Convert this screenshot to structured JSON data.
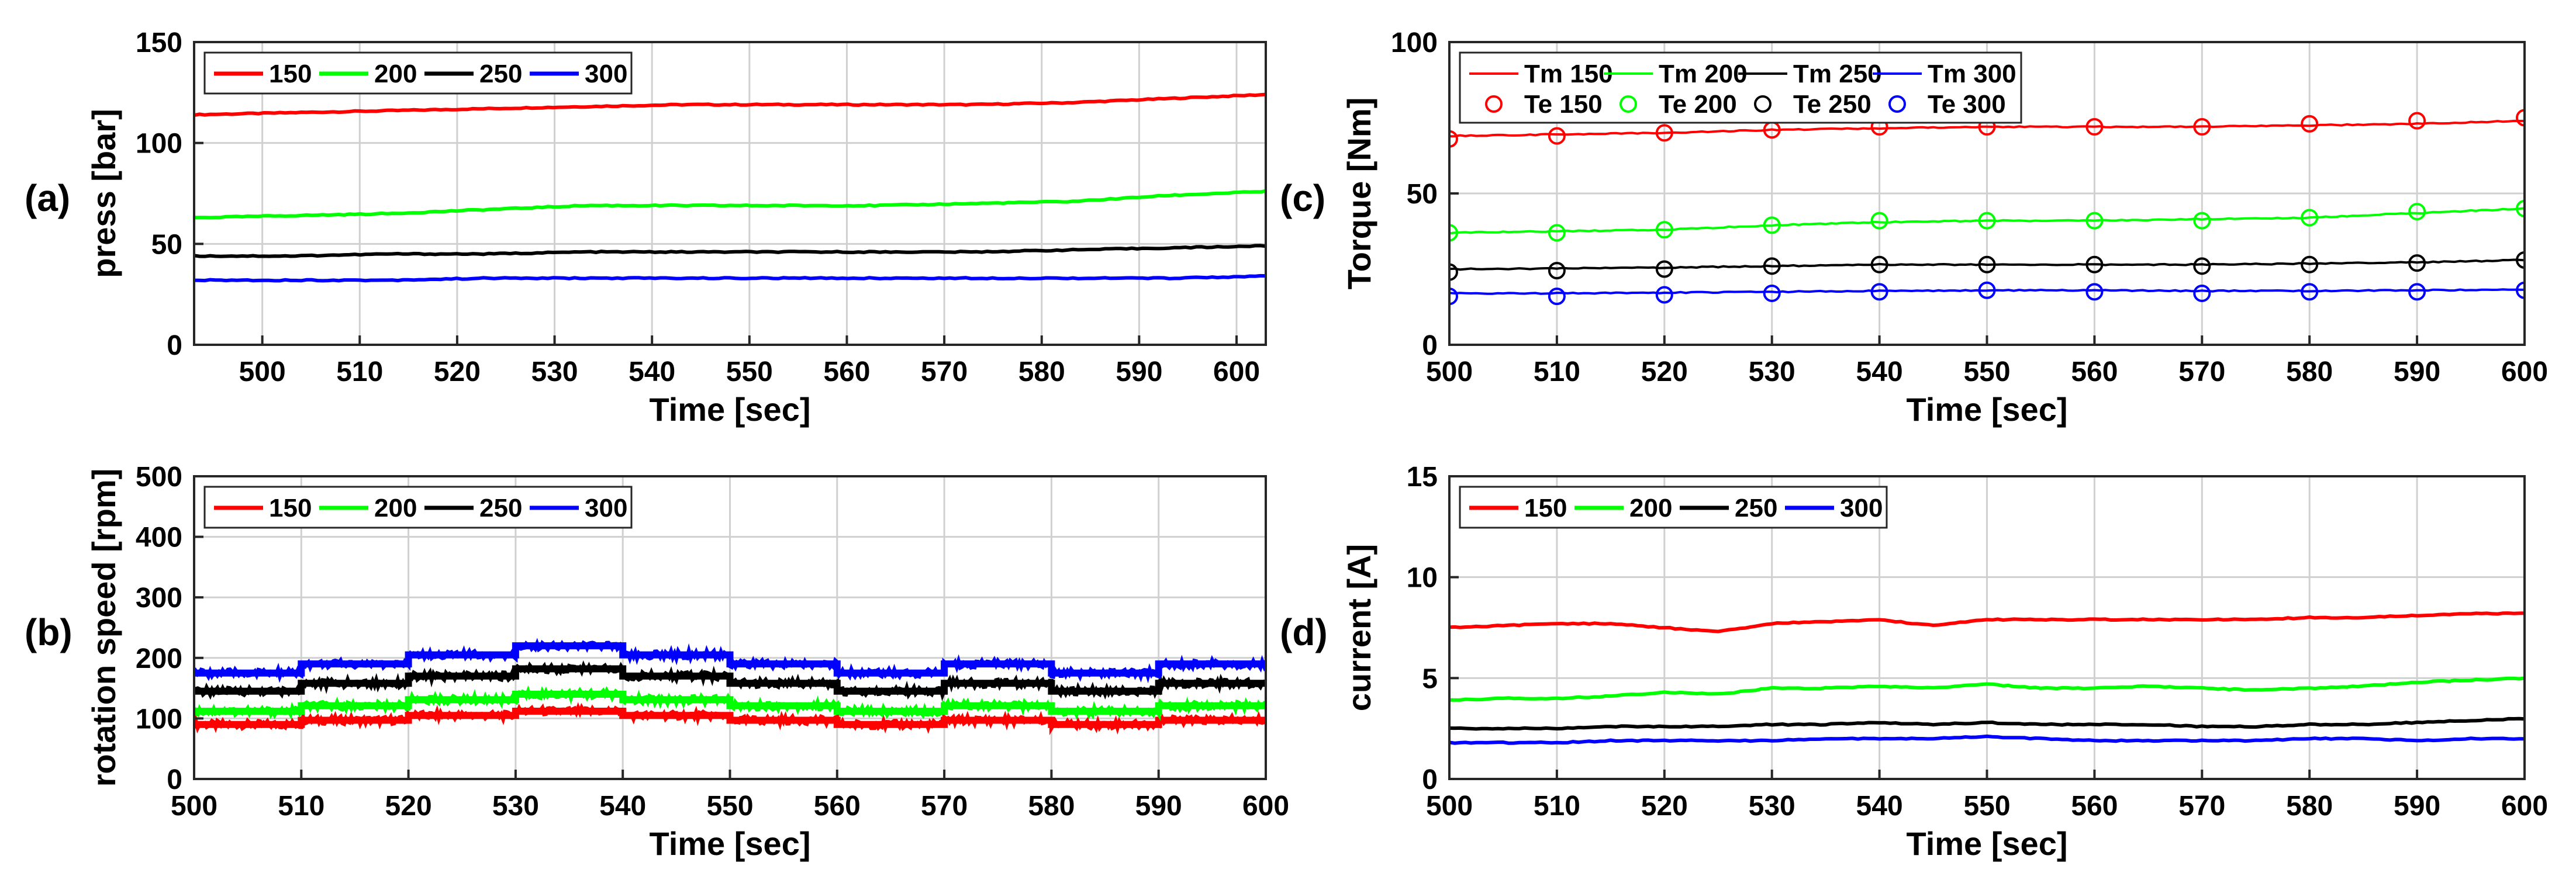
{
  "chart_data": [
    {
      "id": "a",
      "panel_label": "(a)",
      "type": "line",
      "xlabel": "Time [sec]",
      "ylabel": "press [bar]",
      "xlim": [
        493,
        603
      ],
      "ylim": [
        0,
        150
      ],
      "xticks": [
        500,
        510,
        520,
        530,
        540,
        550,
        560,
        570,
        580,
        590,
        600
      ],
      "yticks": [
        0,
        50,
        100,
        150
      ],
      "grid": true,
      "legend": "top-left",
      "series": [
        {
          "name": "150",
          "color": "#ff0000",
          "x": [
            493,
            503,
            513,
            523,
            533,
            543,
            553,
            563,
            573,
            583,
            593,
            603
          ],
          "values": [
            114,
            115,
            116,
            117,
            118,
            119,
            119,
            119,
            119,
            120,
            122,
            124
          ]
        },
        {
          "name": "200",
          "color": "#00ff00",
          "x": [
            493,
            503,
            513,
            523,
            533,
            543,
            553,
            563,
            573,
            583,
            593,
            603
          ],
          "values": [
            63,
            64,
            65,
            67,
            69,
            69,
            69,
            69,
            70,
            71,
            74,
            76
          ]
        },
        {
          "name": "250",
          "color": "#000000",
          "x": [
            493,
            503,
            513,
            523,
            533,
            543,
            553,
            563,
            573,
            583,
            593,
            603
          ],
          "values": [
            44,
            44,
            45,
            45,
            46,
            46,
            46,
            46,
            46,
            47,
            48,
            49
          ]
        },
        {
          "name": "300",
          "color": "#0000ff",
          "x": [
            493,
            503,
            513,
            523,
            533,
            543,
            553,
            563,
            573,
            583,
            593,
            603
          ],
          "values": [
            32,
            32,
            32,
            33,
            33,
            33,
            33,
            33,
            33,
            33,
            33,
            34
          ]
        }
      ]
    },
    {
      "id": "b",
      "panel_label": "(b)",
      "type": "line",
      "xlabel": "Time [sec]",
      "ylabel": "rotation speed [rpm]",
      "xlim": [
        500,
        600
      ],
      "ylim": [
        0,
        500
      ],
      "xticks": [
        500,
        510,
        520,
        530,
        540,
        550,
        560,
        570,
        580,
        590,
        600
      ],
      "yticks": [
        0,
        100,
        200,
        300,
        400,
        500
      ],
      "grid": true,
      "legend": "top-left",
      "step_edges": [
        500,
        510,
        520,
        530,
        540,
        550,
        560,
        570,
        580,
        590,
        600
      ],
      "series": [
        {
          "name": "150",
          "color": "#ff0000",
          "values": [
            90,
            97,
            105,
            112,
            105,
            97,
            90,
            97,
            90,
            97
          ]
        },
        {
          "name": "200",
          "color": "#00ff00",
          "values": [
            112,
            121,
            131,
            140,
            131,
            121,
            112,
            121,
            112,
            121
          ]
        },
        {
          "name": "250",
          "color": "#000000",
          "values": [
            145,
            158,
            170,
            182,
            170,
            158,
            145,
            158,
            145,
            158
          ]
        },
        {
          "name": "300",
          "color": "#0000ff",
          "values": [
            175,
            190,
            205,
            220,
            205,
            190,
            175,
            190,
            175,
            190
          ]
        }
      ]
    },
    {
      "id": "c",
      "panel_label": "(c)",
      "type": "line",
      "xlabel": "Time [sec]",
      "ylabel": "Torque [Nm]",
      "xlim": [
        500,
        600
      ],
      "ylim": [
        0,
        100
      ],
      "xticks": [
        500,
        510,
        520,
        530,
        540,
        550,
        560,
        570,
        580,
        590,
        600
      ],
      "yticks": [
        0,
        50,
        100
      ],
      "grid": true,
      "legend": "top-left",
      "series": [
        {
          "name": "Tm 150",
          "style": "line",
          "color": "#ff0000",
          "x": [
            500,
            510,
            520,
            530,
            540,
            550,
            560,
            570,
            580,
            590,
            600
          ],
          "values": [
            69,
            69.5,
            70,
            71,
            71.5,
            72,
            72,
            72,
            72.5,
            73,
            74
          ]
        },
        {
          "name": "Tm 200",
          "style": "line",
          "color": "#00ff00",
          "x": [
            500,
            510,
            520,
            530,
            540,
            550,
            560,
            570,
            580,
            590,
            600
          ],
          "values": [
            37,
            37.5,
            38,
            39.5,
            40.5,
            41,
            41,
            41.5,
            42,
            43.5,
            45
          ]
        },
        {
          "name": "Tm 250",
          "style": "line",
          "color": "#000000",
          "x": [
            500,
            510,
            520,
            530,
            540,
            550,
            560,
            570,
            580,
            590,
            600
          ],
          "values": [
            25,
            25.2,
            25.5,
            26,
            26.5,
            26.5,
            26.5,
            26.5,
            26.8,
            27.2,
            28
          ]
        },
        {
          "name": "Tm 300",
          "style": "line",
          "color": "#0000ff",
          "x": [
            500,
            510,
            520,
            530,
            540,
            550,
            560,
            570,
            580,
            590,
            600
          ],
          "values": [
            17,
            17,
            17.2,
            17.5,
            17.8,
            18,
            18,
            17.8,
            17.8,
            18,
            18.3
          ]
        },
        {
          "name": "Te 150",
          "style": "marker",
          "color": "#ff0000",
          "x": [
            500,
            510,
            520,
            530,
            540,
            550,
            560,
            570,
            580,
            590,
            600
          ],
          "values": [
            68,
            69,
            70,
            71,
            72,
            72,
            72,
            72,
            73,
            74,
            75
          ]
        },
        {
          "name": "Te 200",
          "style": "marker",
          "color": "#00ff00",
          "x": [
            500,
            510,
            520,
            530,
            540,
            550,
            560,
            570,
            580,
            590,
            600
          ],
          "values": [
            37,
            37,
            38,
            39.5,
            41,
            41,
            41,
            41,
            42,
            44,
            45
          ]
        },
        {
          "name": "Te 250",
          "style": "marker",
          "color": "#000000",
          "x": [
            500,
            510,
            520,
            530,
            540,
            550,
            560,
            570,
            580,
            590,
            600
          ],
          "values": [
            24,
            24.5,
            25,
            26,
            26.5,
            26.5,
            26.5,
            26,
            26.5,
            27,
            28
          ]
        },
        {
          "name": "Te 300",
          "style": "marker",
          "color": "#0000ff",
          "x": [
            500,
            510,
            520,
            530,
            540,
            550,
            560,
            570,
            580,
            590,
            600
          ],
          "values": [
            16,
            16,
            16.5,
            17,
            17.5,
            18,
            17.5,
            17,
            17.5,
            17.5,
            18
          ]
        }
      ]
    },
    {
      "id": "d",
      "panel_label": "(d)",
      "type": "line",
      "xlabel": "Time [sec]",
      "ylabel": "current [A]",
      "xlim": [
        500,
        600
      ],
      "ylim": [
        0,
        15
      ],
      "xticks": [
        500,
        510,
        520,
        530,
        540,
        550,
        560,
        570,
        580,
        590,
        600
      ],
      "yticks": [
        0,
        5,
        10,
        15
      ],
      "grid": true,
      "legend": "top-left",
      "series": [
        {
          "name": "150",
          "color": "#ff0000",
          "x": [
            500,
            505,
            510,
            515,
            520,
            525,
            530,
            535,
            540,
            545,
            550,
            555,
            560,
            565,
            570,
            575,
            580,
            585,
            590,
            595,
            600
          ],
          "values": [
            7.5,
            7.6,
            7.7,
            7.7,
            7.5,
            7.3,
            7.7,
            7.8,
            7.9,
            7.6,
            7.9,
            7.9,
            7.9,
            7.9,
            7.9,
            7.9,
            8.0,
            8.0,
            8.1,
            8.2,
            8.2
          ]
        },
        {
          "name": "200",
          "color": "#00ff00",
          "x": [
            500,
            505,
            510,
            515,
            520,
            525,
            530,
            535,
            540,
            545,
            550,
            555,
            560,
            565,
            570,
            575,
            580,
            585,
            590,
            595,
            600
          ],
          "values": [
            3.9,
            4.0,
            4.0,
            4.1,
            4.3,
            4.2,
            4.5,
            4.5,
            4.6,
            4.5,
            4.7,
            4.5,
            4.5,
            4.6,
            4.5,
            4.4,
            4.5,
            4.6,
            4.8,
            4.9,
            5.0
          ]
        },
        {
          "name": "250",
          "color": "#000000",
          "x": [
            500,
            505,
            510,
            515,
            520,
            525,
            530,
            535,
            540,
            545,
            550,
            555,
            560,
            565,
            570,
            575,
            580,
            585,
            590,
            595,
            600
          ],
          "values": [
            2.5,
            2.5,
            2.5,
            2.6,
            2.6,
            2.6,
            2.7,
            2.7,
            2.8,
            2.7,
            2.8,
            2.7,
            2.7,
            2.7,
            2.6,
            2.6,
            2.7,
            2.7,
            2.8,
            2.9,
            3.0
          ]
        },
        {
          "name": "300",
          "color": "#0000ff",
          "x": [
            500,
            505,
            510,
            515,
            520,
            525,
            530,
            535,
            540,
            545,
            550,
            555,
            560,
            565,
            570,
            575,
            580,
            585,
            590,
            595,
            600
          ],
          "values": [
            1.8,
            1.8,
            1.8,
            1.9,
            1.9,
            1.9,
            1.9,
            2.0,
            2.0,
            2.0,
            2.1,
            2.0,
            1.9,
            1.9,
            1.9,
            1.9,
            2.0,
            2.0,
            1.9,
            2.0,
            2.0
          ]
        }
      ]
    }
  ]
}
